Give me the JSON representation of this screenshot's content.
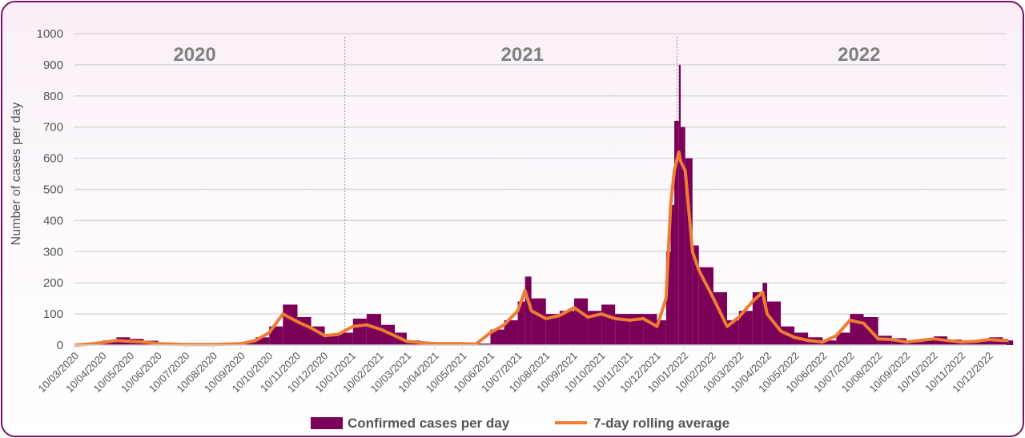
{
  "chart_data": {
    "type": "bar+line",
    "ylabel": "Number of cases per day",
    "xlabel": "",
    "ylim": [
      0,
      1000
    ],
    "yticks": [
      0,
      100,
      200,
      300,
      400,
      500,
      600,
      700,
      800,
      900,
      1000
    ],
    "grid": true,
    "legend_position": "bottom",
    "colors": {
      "bars": "#7a0058",
      "line": "#ed7d31"
    },
    "year_labels": [
      {
        "label": "2020",
        "date": "2020-07-20"
      },
      {
        "label": "2021",
        "date": "2021-07-15"
      },
      {
        "label": "2022",
        "date": "2022-07-20"
      }
    ],
    "year_dividers": [
      "2021-01-01",
      "2022-01-01"
    ],
    "x_tick_labels": [
      "10/03/2020",
      "10/04/2020",
      "10/05/2020",
      "10/06/2020",
      "10/07/2020",
      "10/08/2020",
      "10/09/2020",
      "10/10/2020",
      "10/11/2020",
      "10/12/2020",
      "10/01/2021",
      "10/02/2021",
      "10/03/2021",
      "10/04/2021",
      "10/05/2021",
      "10/06/2021",
      "10/07/2021",
      "10/08/2021",
      "10/09/2021",
      "10/10/2021",
      "10/11/2021",
      "10/12/2021",
      "10/01/2022",
      "10/02/2022",
      "10/03/2022",
      "10/04/2022",
      "10/05/2022",
      "10/06/2022",
      "10/07/2022",
      "10/08/2022",
      "10/09/2022",
      "10/10/2022",
      "10/11/2022",
      "10/12/2022"
    ],
    "dates": [
      "2020-03-10",
      "2020-03-25",
      "2020-04-10",
      "2020-04-25",
      "2020-05-10",
      "2020-05-25",
      "2020-06-10",
      "2020-06-25",
      "2020-07-10",
      "2020-07-25",
      "2020-08-10",
      "2020-08-25",
      "2020-09-10",
      "2020-09-25",
      "2020-10-10",
      "2020-10-25",
      "2020-11-10",
      "2020-11-25",
      "2020-12-10",
      "2020-12-25",
      "2021-01-10",
      "2021-01-25",
      "2021-02-10",
      "2021-02-25",
      "2021-03-10",
      "2021-03-25",
      "2021-04-10",
      "2021-04-25",
      "2021-05-10",
      "2021-05-25",
      "2021-06-10",
      "2021-06-25",
      "2021-07-10",
      "2021-07-18",
      "2021-07-25",
      "2021-08-10",
      "2021-08-25",
      "2021-09-10",
      "2021-09-25",
      "2021-10-10",
      "2021-10-25",
      "2021-11-10",
      "2021-11-25",
      "2021-12-10",
      "2021-12-20",
      "2021-12-25",
      "2021-12-29",
      "2022-01-03",
      "2022-01-05",
      "2022-01-10",
      "2022-01-18",
      "2022-01-25",
      "2022-02-10",
      "2022-02-25",
      "2022-03-10",
      "2022-03-25",
      "2022-04-05",
      "2022-04-10",
      "2022-04-25",
      "2022-05-10",
      "2022-05-25",
      "2022-06-10",
      "2022-06-25",
      "2022-07-10",
      "2022-07-25",
      "2022-08-10",
      "2022-08-25",
      "2022-09-10",
      "2022-09-25",
      "2022-10-10",
      "2022-10-25",
      "2022-11-10",
      "2022-11-25",
      "2022-12-10",
      "2022-12-25",
      "2022-12-31"
    ],
    "series": [
      {
        "name": "Confirmed cases per day",
        "type": "bar",
        "values": [
          2,
          6,
          15,
          25,
          20,
          14,
          8,
          5,
          3,
          3,
          3,
          5,
          10,
          25,
          60,
          130,
          90,
          60,
          35,
          40,
          85,
          100,
          65,
          40,
          15,
          10,
          6,
          6,
          6,
          5,
          50,
          80,
          140,
          220,
          150,
          100,
          110,
          150,
          110,
          130,
          100,
          100,
          100,
          80,
          300,
          450,
          720,
          900,
          700,
          600,
          320,
          250,
          170,
          80,
          110,
          170,
          200,
          140,
          60,
          40,
          25,
          15,
          40,
          100,
          90,
          30,
          22,
          14,
          18,
          28,
          18,
          14,
          16,
          25,
          20,
          15
        ]
      },
      {
        "name": "7-day rolling average",
        "type": "line",
        "values": [
          0,
          3,
          8,
          15,
          12,
          10,
          5,
          3,
          2,
          2,
          2,
          3,
          5,
          15,
          40,
          100,
          75,
          55,
          30,
          35,
          60,
          65,
          50,
          30,
          12,
          8,
          5,
          5,
          5,
          3,
          40,
          65,
          110,
          175,
          110,
          85,
          95,
          120,
          90,
          100,
          85,
          80,
          85,
          60,
          150,
          450,
          560,
          620,
          590,
          560,
          300,
          240,
          150,
          60,
          90,
          140,
          170,
          100,
          45,
          25,
          15,
          10,
          30,
          80,
          70,
          20,
          18,
          10,
          15,
          20,
          15,
          10,
          12,
          18,
          15,
          15
        ]
      }
    ]
  }
}
